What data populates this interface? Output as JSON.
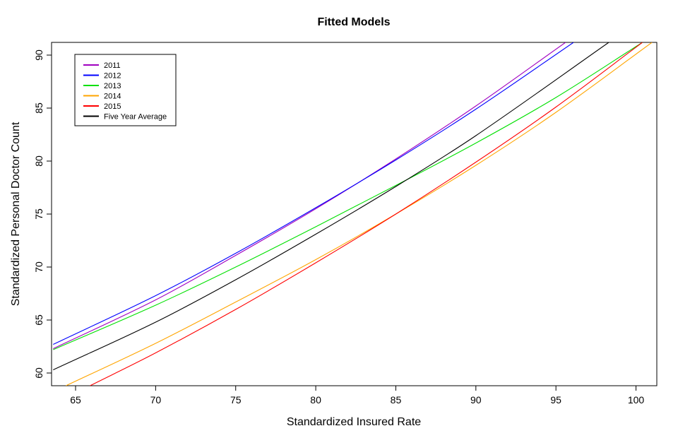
{
  "chart_data": {
    "type": "line",
    "title": "Fitted Models",
    "xlabel": "Standardized Insured Rate",
    "ylabel": "Standardized Personal Doctor Count",
    "xlim": [
      63.5,
      101.3
    ],
    "ylim": [
      58.8,
      91.2
    ],
    "xticks": [
      65,
      70,
      75,
      80,
      85,
      90,
      95,
      100
    ],
    "yticks": [
      60,
      65,
      70,
      75,
      80,
      85,
      90
    ],
    "grid": false,
    "legend_position": "top-left",
    "series": [
      {
        "name": "2011",
        "color": "#a000c0",
        "x": [
          63.6,
          70,
          75,
          80,
          85,
          90,
          95.6
        ],
        "y": [
          62.3,
          66.9,
          71.1,
          75.5,
          80.2,
          85.2,
          91.2
        ]
      },
      {
        "name": "2012",
        "color": "#0000ff",
        "x": [
          63.6,
          70,
          75,
          80,
          85,
          90,
          96.1
        ],
        "y": [
          62.7,
          67.3,
          71.3,
          75.6,
          80.1,
          84.9,
          91.2
        ]
      },
      {
        "name": "2013",
        "color": "#00e000",
        "x": [
          63.6,
          70,
          75,
          80,
          85,
          90,
          95,
          100.4
        ],
        "y": [
          62.2,
          66.4,
          70.0,
          73.8,
          77.7,
          81.7,
          86.0,
          91.2
        ]
      },
      {
        "name": "2014",
        "color": "#ffa500",
        "x": [
          64.4,
          70,
          75,
          80,
          85,
          90,
          95,
          101.0
        ],
        "y": [
          58.8,
          62.8,
          66.7,
          70.7,
          75.0,
          79.6,
          84.6,
          91.2
        ]
      },
      {
        "name": "2015",
        "color": "#ff0000",
        "x": [
          65.9,
          70,
          75,
          80,
          85,
          90,
          95,
          100.4
        ],
        "y": [
          58.8,
          61.9,
          66.0,
          70.4,
          75.0,
          79.9,
          85.1,
          91.2
        ]
      },
      {
        "name": "Five Year Average",
        "color": "#000000",
        "x": [
          63.6,
          70,
          75,
          80,
          85,
          90,
          98.3
        ],
        "y": [
          60.3,
          64.8,
          68.8,
          73.1,
          77.6,
          82.4,
          91.2
        ]
      }
    ]
  }
}
